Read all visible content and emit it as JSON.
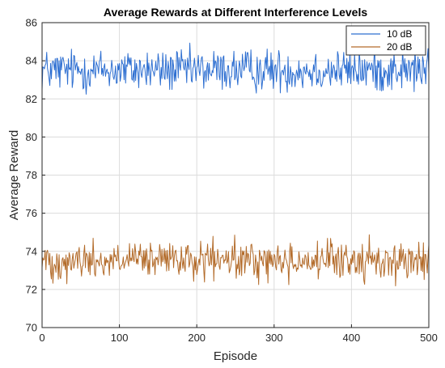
{
  "chart_data": {
    "type": "line",
    "title": "Average Rewards at Different Interference Levels",
    "xlabel": "Episode",
    "ylabel": "Average Reward",
    "xlim": [
      0,
      500
    ],
    "ylim": [
      70,
      86
    ],
    "xticks": [
      0,
      100,
      200,
      300,
      400,
      500
    ],
    "yticks": [
      70,
      72,
      74,
      76,
      78,
      80,
      82,
      84,
      86
    ],
    "grid": true,
    "legend_position": "top-right",
    "series": [
      {
        "name": "10 dB",
        "color": "#2e6fd1",
        "mean": 83.5,
        "amplitude_range": [
          81.7,
          85.2
        ]
      },
      {
        "name": "20 dB",
        "color": "#b36b2a",
        "mean": 73.5,
        "amplitude_range": [
          71.8,
          74.9
        ]
      }
    ]
  }
}
